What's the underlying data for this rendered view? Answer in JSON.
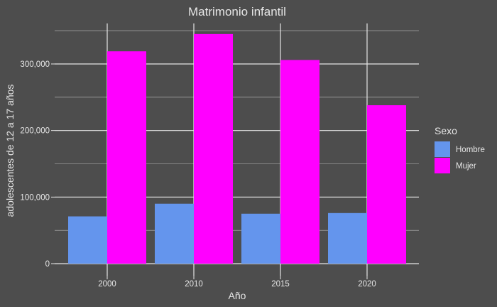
{
  "chart_data": {
    "type": "bar",
    "title": "Matrimonio infantil",
    "xlabel": "Año",
    "ylabel": "adolescentes de 12 a 17 años",
    "categories": [
      "2000",
      "2010",
      "2015",
      "2020"
    ],
    "series": [
      {
        "name": "Hombre",
        "color": "#6495ed",
        "values": [
          71000,
          90000,
          75000,
          76000
        ]
      },
      {
        "name": "Mujer",
        "color": "#ff00ff",
        "values": [
          319000,
          345000,
          306000,
          238000
        ]
      }
    ],
    "ylim": [
      0,
      362000
    ],
    "yticks": [
      0,
      100000,
      200000,
      300000
    ],
    "ytick_labels": [
      "0",
      "100,000",
      "200,000",
      "300,000"
    ],
    "legend": {
      "title": "Sexo",
      "position": "right"
    },
    "grid": true,
    "colors": {
      "background": "#4d4d4d",
      "grid": "#e6e6e6",
      "text": "#e6e6e6"
    }
  }
}
